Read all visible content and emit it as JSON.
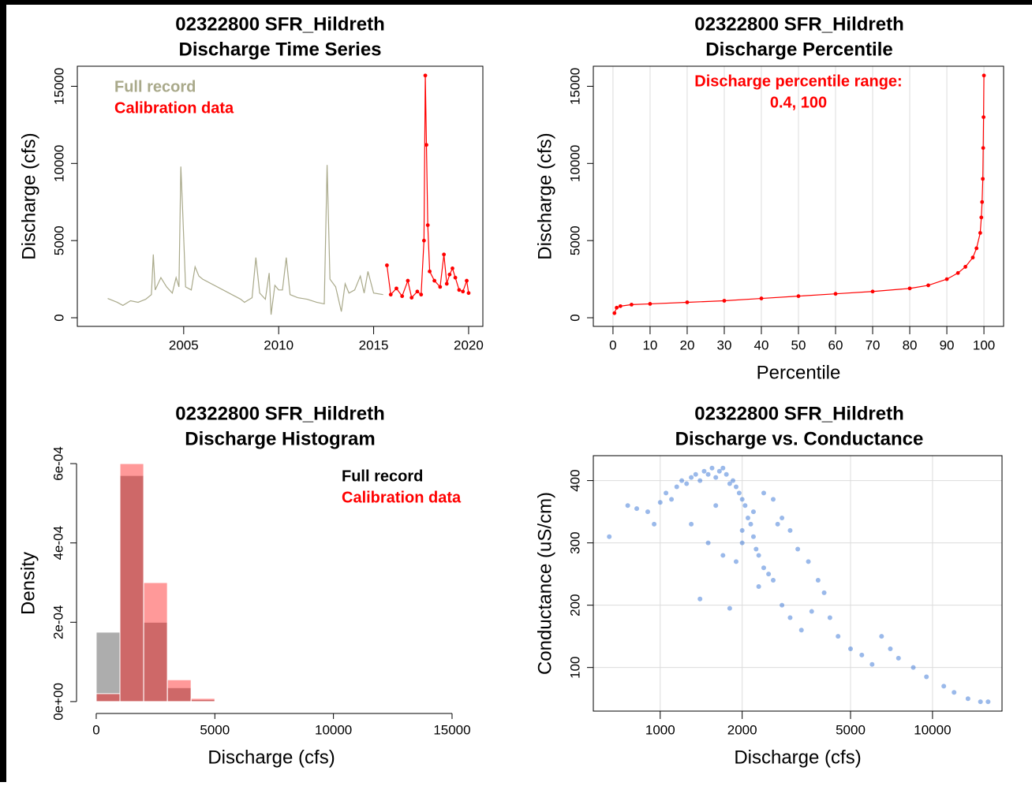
{
  "chart_data": [
    {
      "type": "line",
      "title": "02322800 SFR_Hildreth",
      "subtitle": "Discharge Time Series",
      "ylabel": "Discharge (cfs)",
      "xlim": [
        1999.4,
        2020.75
      ],
      "ylim": [
        -560,
        16300
      ],
      "xticks": [
        2005,
        2010,
        2015,
        2020
      ],
      "yticks": [
        0,
        5000,
        10000,
        15000
      ],
      "legend": "top-left",
      "series": [
        {
          "name": "Full record",
          "color": "#a9a98a",
          "markers": false,
          "x": [
            2001.0,
            2001.5,
            2001.8,
            2002.2,
            2002.6,
            2003.0,
            2003.3,
            2003.4,
            2003.5,
            2003.8,
            2004.1,
            2004.4,
            2004.6,
            2004.75,
            2004.85,
            2004.95,
            2005.1,
            2005.4,
            2005.6,
            2005.8,
            2006.0,
            2008.0,
            2008.2,
            2008.6,
            2008.8,
            2009.0,
            2009.3,
            2009.5,
            2009.6,
            2009.8,
            2010.0,
            2010.2,
            2010.4,
            2010.6,
            2011.0,
            2011.5,
            2012.0,
            2012.4,
            2012.55,
            2012.7,
            2013.0,
            2013.3,
            2013.5,
            2013.7,
            2014.0,
            2014.3,
            2014.5,
            2014.7,
            2015.0,
            2015.5
          ],
          "values": [
            1250,
            1000,
            800,
            1100,
            1000,
            1200,
            1500,
            4100,
            1800,
            2600,
            2000,
            1600,
            2600,
            2000,
            9800,
            6800,
            2000,
            1800,
            3300,
            2700,
            2500,
            1200,
            1000,
            1300,
            3900,
            1600,
            1200,
            2900,
            200,
            2100,
            1800,
            1800,
            3900,
            1500,
            1300,
            1200,
            1000,
            900,
            9900,
            2500,
            2000,
            400,
            2200,
            1600,
            1800,
            2700,
            1600,
            3000,
            1600,
            1500
          ]
        },
        {
          "name": "Calibration data",
          "color": "#ff0000",
          "markers": true,
          "x": [
            2015.7,
            2015.9,
            2016.2,
            2016.5,
            2016.8,
            2017.0,
            2017.3,
            2017.5,
            2017.65,
            2017.72,
            2017.78,
            2017.85,
            2017.95,
            2018.2,
            2018.5,
            2018.7,
            2018.85,
            2019.0,
            2019.15,
            2019.3,
            2019.5,
            2019.7,
            2019.9,
            2020.0
          ],
          "values": [
            3400,
            1500,
            1900,
            1400,
            2400,
            1300,
            1700,
            1500,
            5000,
            15700,
            11200,
            6000,
            3000,
            2400,
            2000,
            4100,
            2200,
            2800,
            3200,
            2600,
            1800,
            1700,
            2400,
            1600
          ]
        }
      ]
    },
    {
      "type": "line",
      "title": "02322800 SFR_Hildreth",
      "subtitle": "Discharge Percentile",
      "xlabel": "Percentile",
      "ylabel": "Discharge (cfs)",
      "annotation": [
        "Discharge percentile range:",
        "0.4, 100"
      ],
      "annotation_color": "#ff0000",
      "xlim": [
        -5.3,
        105.3
      ],
      "ylim": [
        -560,
        16300
      ],
      "xticks": [
        0,
        10,
        20,
        30,
        40,
        50,
        60,
        70,
        80,
        90,
        100
      ],
      "yticks": [
        0,
        5000,
        10000,
        15000
      ],
      "grid": "x",
      "series": [
        {
          "color": "#ff0000",
          "markers": true,
          "x": [
            0.4,
            1,
            2,
            5,
            10,
            20,
            30,
            40,
            50,
            60,
            70,
            80,
            85,
            90,
            93,
            95,
            97,
            98,
            99,
            99.3,
            99.5,
            99.7,
            99.8,
            99.9,
            100
          ],
          "values": [
            300,
            650,
            750,
            850,
            900,
            1000,
            1100,
            1250,
            1400,
            1550,
            1700,
            1900,
            2100,
            2500,
            2900,
            3300,
            3900,
            4500,
            5500,
            6500,
            7500,
            9000,
            11000,
            13000,
            15700
          ]
        }
      ]
    },
    {
      "type": "histogram",
      "title": "02322800 SFR_Hildreth",
      "subtitle": "Discharge Histogram",
      "xlabel": "Discharge (cfs)",
      "ylabel": "Density",
      "xlim": [
        -830,
        15600
      ],
      "ylim": [
        -2.4e-05,
        0.00062
      ],
      "xticks": [
        0,
        5000,
        10000,
        15000
      ],
      "yticks": [
        {
          "value": 0,
          "label": "0e+00"
        },
        {
          "value": 0.0002,
          "label": "2e-04"
        },
        {
          "value": 0.0004,
          "label": "4e-04"
        },
        {
          "value": 0.0006,
          "label": "6e-04"
        }
      ],
      "legend": "top-right",
      "bins": [
        0,
        1000,
        2000,
        3000,
        4000,
        5000
      ],
      "series": [
        {
          "name": "Full record",
          "color": "#000000",
          "alpha": 0.32,
          "values": [
            0.000175,
            0.00057,
            0.0002,
            3.5e-05,
            5e-06
          ]
        },
        {
          "name": "Calibration data",
          "color": "#ff0000",
          "alpha": 0.4,
          "values": [
            2e-05,
            0.0006,
            0.0003,
            5.5e-05,
            8e-06
          ]
        }
      ]
    },
    {
      "type": "scatter",
      "title": "02322800 SFR_Hildreth",
      "subtitle": "Discharge vs. Conductance",
      "xlabel": "Discharge (cfs)",
      "ylabel": "Conductance (uS/cm)",
      "xlog": true,
      "xlim": [
        568,
        18000
      ],
      "ylim": [
        30,
        440
      ],
      "xticks": [
        1000,
        2000,
        5000,
        10000
      ],
      "yticks": [
        100,
        200,
        300,
        400
      ],
      "grid": "xy",
      "color": "#1f63d0",
      "alpha": 0.45,
      "x": [
        650,
        760,
        820,
        900,
        950,
        1000,
        1050,
        1100,
        1150,
        1200,
        1250,
        1300,
        1350,
        1400,
        1450,
        1500,
        1550,
        1600,
        1650,
        1700,
        1750,
        1800,
        1850,
        1900,
        1950,
        2000,
        2050,
        2100,
        2150,
        2200,
        2250,
        2300,
        2400,
        2500,
        2600,
        1400,
        1800,
        1300,
        1500,
        1700,
        1900,
        2000,
        2200,
        2400,
        2600,
        2800,
        3000,
        3200,
        3500,
        3800,
        4000,
        2800,
        3000,
        3300,
        3600,
        4200,
        4500,
        5000,
        5500,
        6000,
        6500,
        7000,
        7500,
        8500,
        9500,
        11000,
        12000,
        13500,
        15000,
        16000,
        2000,
        1600,
        2300,
        2700
      ],
      "values": [
        310,
        360,
        355,
        350,
        330,
        365,
        380,
        370,
        390,
        400,
        395,
        405,
        410,
        400,
        415,
        410,
        420,
        405,
        415,
        420,
        410,
        395,
        400,
        390,
        380,
        370,
        360,
        340,
        330,
        310,
        290,
        280,
        260,
        250,
        240,
        210,
        195,
        330,
        300,
        280,
        270,
        300,
        350,
        380,
        370,
        340,
        320,
        290,
        270,
        240,
        220,
        200,
        180,
        160,
        190,
        180,
        150,
        130,
        120,
        105,
        150,
        130,
        115,
        100,
        85,
        70,
        60,
        50,
        45,
        45,
        320,
        360,
        230,
        330
      ]
    }
  ]
}
